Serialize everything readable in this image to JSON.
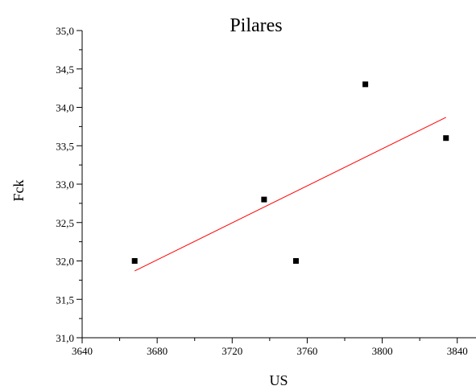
{
  "chart_data": {
    "type": "scatter",
    "title": "Pilares",
    "xlabel": "US",
    "ylabel": "Fck",
    "xlim": [
      3640,
      3850
    ],
    "ylim": [
      31.0,
      35.0
    ],
    "x_ticks": [
      "3640",
      "3680",
      "3720",
      "3760",
      "3800",
      "3840"
    ],
    "y_ticks": [
      "31,0",
      "31,5",
      "32,0",
      "32,5",
      "33,0",
      "33,5",
      "34,0",
      "34,5",
      "35,0"
    ],
    "grid": false,
    "series": [
      {
        "type": "scatter",
        "color": "#000000",
        "marker": "square",
        "points": [
          {
            "x": 3668,
            "y": 32.0
          },
          {
            "x": 3737,
            "y": 32.8
          },
          {
            "x": 3754,
            "y": 32.0
          },
          {
            "x": 3791,
            "y": 34.3
          },
          {
            "x": 3834,
            "y": 33.6
          }
        ]
      },
      {
        "type": "line",
        "color": "#ff0000",
        "fit": "linear",
        "points": [
          {
            "x": 3668,
            "y": 31.87
          },
          {
            "x": 3834,
            "y": 33.87
          }
        ]
      }
    ]
  }
}
